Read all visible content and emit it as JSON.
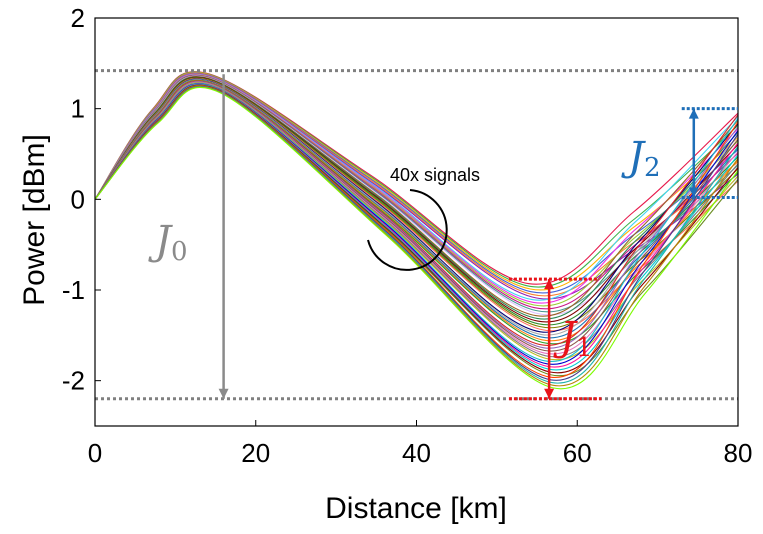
{
  "chart_data": {
    "type": "line",
    "xlabel": "Distance [km]",
    "ylabel": "Power [dBm]",
    "xlim": [
      0,
      80
    ],
    "ylim": [
      -2.5,
      2
    ],
    "x_ticks": [
      "0",
      "20",
      "40",
      "60",
      "80"
    ],
    "y_ticks": [
      "-2",
      "-1",
      "0",
      "1",
      "2"
    ],
    "x_tick_values": [
      0,
      20,
      40,
      60,
      80
    ],
    "y_tick_values": [
      -2,
      -1,
      0,
      1,
      2
    ],
    "grid": false,
    "series_count": 40,
    "series_envelope": {
      "x_start": 0,
      "y_start": 0,
      "peak_x": 15,
      "peak_y_range": [
        1.17,
        1.38
      ],
      "valley_x_range": [
        54,
        57
      ],
      "valley_y_range": [
        -2.08,
        -0.93
      ],
      "end_x": 80,
      "end_y_range": [
        0.2,
        0.95
      ]
    },
    "series_colors": [
      "#e6194b",
      "#3cb44b",
      "#ffb300",
      "#4363d8",
      "#f58231",
      "#911eb4",
      "#42d4f4",
      "#f032e6",
      "#9acd32",
      "#c71585",
      "#469990",
      "#dcbeff",
      "#9a6324",
      "#2e8b57",
      "#800000",
      "#2f8f2f",
      "#808000",
      "#ff6f61",
      "#000075",
      "#a9a9a9",
      "#1f77b4",
      "#ff7f0e",
      "#2ca02c",
      "#d62728",
      "#9467bd",
      "#8c564b",
      "#e377c2",
      "#7f7f7f",
      "#bcbd22",
      "#17becf",
      "#0000cd",
      "#ff1493",
      "#00ced1",
      "#8b0000",
      "#6b8e23",
      "#ff4500",
      "#483d8b",
      "#20b2aa",
      "#b8860b",
      "#7cfc00"
    ],
    "reference_lines": {
      "top_dotted_y": 1.42,
      "bottom_dotted_y": -2.2,
      "color": "#808080"
    },
    "annotations": {
      "signals_label": "40x signals",
      "J0": {
        "main": "J",
        "sub": "0",
        "color": "#8a8a8a",
        "x": 16,
        "y_from": 1.38,
        "y_to": -2.2
      },
      "J1": {
        "main": "J",
        "sub": "1",
        "color": "#e8141a",
        "x": 56.5,
        "y_from": -0.88,
        "y_to": -2.2,
        "bracket_top_y": -0.88,
        "bracket_bottom_y": -2.2
      },
      "J2": {
        "main": "J",
        "sub": "2",
        "color": "#1f6fb8",
        "x": 74.5,
        "y_from": 1.0,
        "y_to": 0.02,
        "bracket_top_y": 1.0,
        "bracket_bottom_y": 0.02
      }
    }
  }
}
